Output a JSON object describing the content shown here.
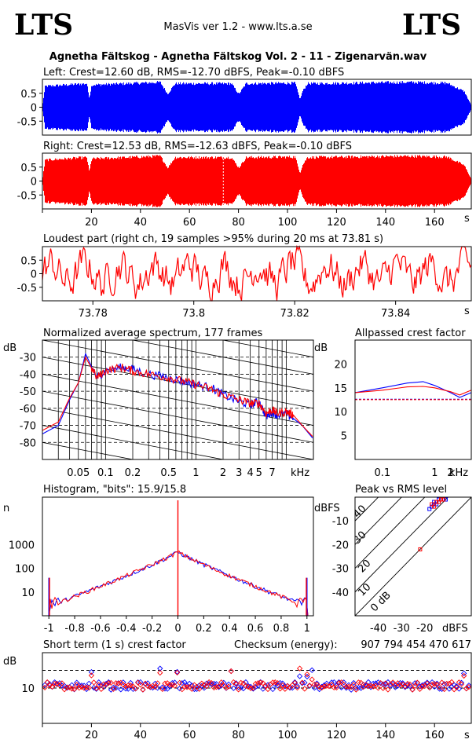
{
  "header": {
    "logo_left": "LTS",
    "logo_right": "LTS",
    "app_title": "MasVis ver 1.2 - www.lts.a.se",
    "file_title": "Agnetha Fältskog - Agnetha Fältskog Vol. 2 - 11 - Zigenarvän.wav"
  },
  "colors": {
    "left": "#0000ff",
    "right": "#ff0000",
    "axes": "#000000"
  },
  "chart_data": [
    {
      "id": "left_waveform",
      "type": "line",
      "title": "Left: Crest=12.60 dB, RMS=-12.70 dBFS, Peak=-0.10 dBFS",
      "series": [
        {
          "name": "Left",
          "color": "#0000ff"
        }
      ],
      "y_ticks": [
        "0.5",
        "0",
        "-0.5"
      ],
      "ylim": [
        -1,
        1
      ],
      "xlim": [
        0,
        175
      ],
      "envelope": [
        [
          0,
          0.15
        ],
        [
          1,
          0.8
        ],
        [
          18,
          0.9
        ],
        [
          19,
          0.35
        ],
        [
          20,
          0.85
        ],
        [
          48,
          0.95
        ],
        [
          51,
          0.5
        ],
        [
          54,
          0.9
        ],
        [
          77,
          0.9
        ],
        [
          80,
          0.5
        ],
        [
          83,
          0.9
        ],
        [
          103,
          0.92
        ],
        [
          105,
          0.3
        ],
        [
          106,
          0.6
        ],
        [
          108,
          0.9
        ],
        [
          150,
          0.95
        ],
        [
          165,
          0.92
        ],
        [
          172,
          0.6
        ],
        [
          175,
          0.05
        ]
      ]
    },
    {
      "id": "right_waveform",
      "type": "line",
      "title": "Right: Crest=12.53 dB, RMS=-12.63 dBFS, Peak=-0.10 dBFS",
      "series": [
        {
          "name": "Right",
          "color": "#ff0000"
        }
      ],
      "y_ticks": [
        "0.5",
        "0",
        "-0.5"
      ],
      "x_ticks": [
        "20",
        "40",
        "60",
        "80",
        "100",
        "120",
        "140",
        "160"
      ],
      "x_unit": "s",
      "ylim": [
        -1,
        1
      ],
      "xlim": [
        0,
        175
      ],
      "envelope": [
        [
          0,
          0.15
        ],
        [
          1,
          0.8
        ],
        [
          18,
          0.9
        ],
        [
          19,
          0.35
        ],
        [
          20,
          0.85
        ],
        [
          48,
          0.95
        ],
        [
          51,
          0.5
        ],
        [
          54,
          0.9
        ],
        [
          77,
          0.9
        ],
        [
          80,
          0.5
        ],
        [
          83,
          0.9
        ],
        [
          103,
          0.92
        ],
        [
          105,
          0.3
        ],
        [
          106,
          0.6
        ],
        [
          108,
          0.9
        ],
        [
          150,
          0.95
        ],
        [
          165,
          0.92
        ],
        [
          172,
          0.6
        ],
        [
          175,
          0.05
        ]
      ],
      "marker_s": 73.81
    },
    {
      "id": "loudest_part",
      "type": "line",
      "title": "Loudest part (right ch, 19 samples >95% during 20 ms at 73.81 s)",
      "series": [
        {
          "name": "Right",
          "color": "#ff0000"
        }
      ],
      "y_ticks": [
        "0.5",
        "0",
        "-0.5"
      ],
      "x_ticks": [
        "73.78",
        "73.8",
        "73.82",
        "73.84"
      ],
      "x_unit": "s",
      "ylim": [
        -1,
        1
      ],
      "xlim": [
        73.77,
        73.855
      ]
    },
    {
      "id": "avg_spectrum",
      "type": "line",
      "title": "Normalized average spectrum, 177 frames",
      "y_unit": "dB",
      "y_ticks": [
        "-30",
        "-40",
        "-50",
        "-60",
        "-70",
        "-80"
      ],
      "x_ticks": [
        "0.05",
        "0.1",
        "0.2",
        "0.5",
        "1",
        "2",
        "3",
        "4",
        "5",
        "7"
      ],
      "x_unit": "kHz",
      "xscale": "log",
      "xlim": [
        0.02,
        20
      ],
      "ylim": [
        -90,
        -20
      ],
      "series": [
        {
          "color": "#0000ff",
          "x": [
            0.02,
            0.03,
            0.04,
            0.05,
            0.06,
            0.08,
            0.1,
            0.15,
            0.2,
            0.3,
            0.5,
            0.7,
            1,
            1.5,
            2,
            3,
            4,
            5,
            6,
            7,
            8,
            10,
            12,
            15,
            20
          ],
          "y": [
            -75,
            -70,
            -55,
            -45,
            -28,
            -42,
            -38,
            -36,
            -37,
            -40,
            -42,
            -44,
            -46,
            -48,
            -52,
            -56,
            -58,
            -56,
            -65,
            -62,
            -64,
            -63,
            -66,
            -70,
            -78
          ]
        },
        {
          "color": "#ff0000",
          "x": [
            0.02,
            0.03,
            0.04,
            0.05,
            0.06,
            0.08,
            0.1,
            0.15,
            0.2,
            0.3,
            0.5,
            0.7,
            1,
            1.5,
            2,
            3,
            4,
            5,
            6,
            7,
            8,
            10,
            12,
            15,
            20
          ],
          "y": [
            -73,
            -68,
            -54,
            -45,
            -30,
            -42,
            -38,
            -36,
            -38,
            -40,
            -42,
            -44,
            -46,
            -49,
            -52,
            -55,
            -57,
            -57,
            -63,
            -61,
            -63,
            -62,
            -64,
            -70,
            -77
          ]
        }
      ]
    },
    {
      "id": "allpassed_crest",
      "type": "line",
      "title": "Allpassed crest factor",
      "y_unit": "dB",
      "y_ticks": [
        "20",
        "15",
        "10",
        "5"
      ],
      "x_ticks": [
        "0.1",
        "1",
        "2"
      ],
      "x_unit": "kHz",
      "xscale": "log",
      "xlim": [
        0.03,
        5
      ],
      "ylim": [
        0,
        25
      ],
      "series": [
        {
          "color": "#0000ff",
          "x": [
            0.03,
            0.1,
            0.3,
            0.6,
            1,
            2,
            3,
            5
          ],
          "y": [
            14,
            15,
            16,
            16.3,
            15.5,
            14,
            13,
            14
          ]
        },
        {
          "color": "#ff0000",
          "x": [
            0.03,
            0.1,
            0.3,
            0.6,
            1,
            2,
            3,
            5
          ],
          "y": [
            14,
            14.5,
            15.2,
            15.3,
            15,
            14.2,
            13.5,
            14.5
          ]
        }
      ],
      "reference": [
        {
          "color": "#0000ff",
          "y": 12.6
        },
        {
          "color": "#ff0000",
          "y": 12.53
        }
      ]
    },
    {
      "id": "histogram",
      "type": "line",
      "title": "Histogram, \"bits\": 15.9/15.8",
      "y_unit": "n",
      "yscale": "log",
      "y_ticks": [
        "1000",
        "100",
        "10"
      ],
      "x_ticks": [
        "-1",
        "-0.8",
        "-0.6",
        "-0.4",
        "-0.2",
        "0",
        "0.2",
        "0.4",
        "0.6",
        "0.8",
        "1"
      ],
      "xlim": [
        -1.05,
        1.05
      ],
      "ylim": [
        1,
        100000
      ]
    },
    {
      "id": "peak_vs_rms",
      "type": "scatter",
      "title": "Peak vs RMS level",
      "y_unit": "dBFS",
      "y_ticks": [
        "-10",
        "-20",
        "-30",
        "-40"
      ],
      "x_ticks": [
        "-40",
        "-30",
        "-20"
      ],
      "x_unit": "dBFS",
      "diagonal_labels": [
        "40",
        "30",
        "20",
        "10",
        "0 dB"
      ],
      "xlim": [
        -50,
        0
      ],
      "ylim": [
        -50,
        0
      ],
      "series": [
        {
          "color": "#0000ff",
          "points": [
            [
              -17,
              -4
            ],
            [
              -16,
              -3
            ],
            [
              -15,
              -3
            ],
            [
              -14,
              -2
            ],
            [
              -13,
              -1
            ],
            [
              -12,
              -1
            ],
            [
              -18,
              -5
            ],
            [
              -11,
              -1
            ],
            [
              -14,
              -1
            ],
            [
              -16,
              -2
            ]
          ]
        },
        {
          "color": "#ff0000",
          "points": [
            [
              -17,
              -3
            ],
            [
              -15,
              -2
            ],
            [
              -13,
              -1
            ],
            [
              -12,
              -1
            ],
            [
              -22,
              -22
            ],
            [
              -16,
              -4
            ],
            [
              -14,
              -2
            ]
          ]
        }
      ]
    },
    {
      "id": "short_term_crest",
      "type": "scatter",
      "title": "Short term (1 s) crest factor",
      "checksum_label": "Checksum (energy):",
      "checksum_value": "907 794 454 470 617",
      "y_unit": "dB",
      "y_ticks": [
        "10"
      ],
      "x_ticks": [
        "20",
        "40",
        "60",
        "80",
        "100",
        "120",
        "140",
        "160"
      ],
      "x_unit": "s",
      "xlim": [
        0,
        175
      ],
      "ylim": [
        0,
        20
      ],
      "dashed_levels": [
        10,
        15
      ]
    }
  ]
}
